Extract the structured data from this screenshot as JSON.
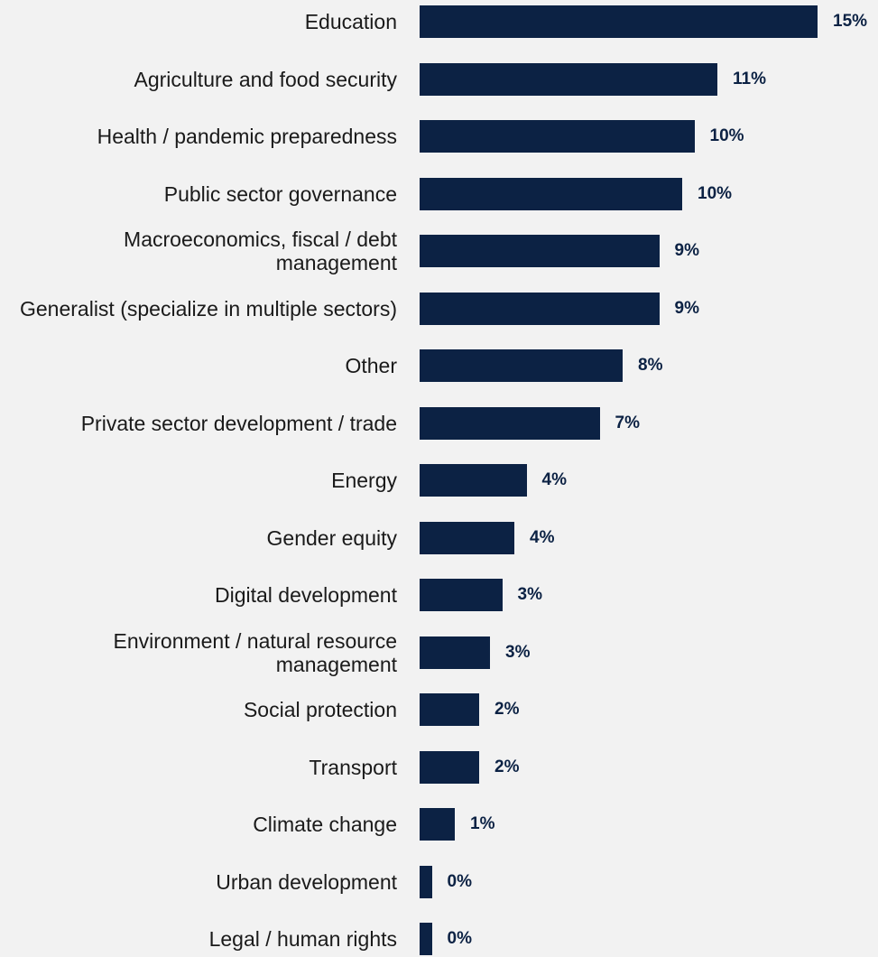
{
  "chart_data": {
    "type": "bar",
    "orientation": "horizontal",
    "title": "",
    "xlabel": "",
    "ylabel": "",
    "xlim": [
      0,
      15
    ],
    "grid": false,
    "legend": "none",
    "bar_color": "#0c2244",
    "categories": [
      "Education",
      "Agriculture and food security",
      "Health / pandemic preparedness",
      "Public sector governance",
      "Macroeconomics, fiscal / debt management",
      "Generalist (specialize in multiple sectors)",
      "Other",
      "Private sector development / trade",
      "Energy",
      "Gender equity",
      "Digital development",
      "Environment / natural resource management",
      "Social protection",
      "Transport",
      "Climate change",
      "Urban development",
      "Legal / human rights"
    ],
    "values": [
      15,
      11,
      10,
      10,
      9,
      9,
      8,
      7,
      4,
      4,
      3,
      3,
      2,
      2,
      1,
      0,
      0
    ],
    "plotted_values": [
      14.7,
      11.0,
      10.15,
      9.7,
      8.85,
      8.85,
      7.5,
      6.65,
      3.95,
      3.5,
      3.05,
      2.6,
      2.2,
      2.2,
      1.3,
      0.45,
      0.45
    ],
    "value_labels": [
      "15%",
      "11%",
      "10%",
      "10%",
      "9%",
      "9%",
      "8%",
      "7%",
      "4%",
      "4%",
      "3%",
      "3%",
      "2%",
      "2%",
      "1%",
      "0%",
      "0%"
    ]
  }
}
